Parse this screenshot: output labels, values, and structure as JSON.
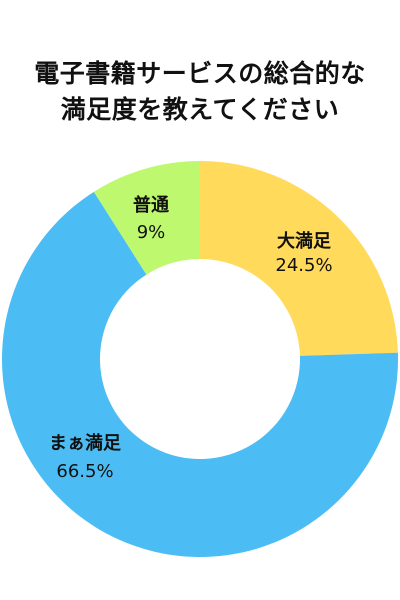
{
  "chart_data": {
    "type": "pie",
    "title": "電子書籍サービスの総合的な\n満足度を教えてください",
    "slices": [
      {
        "label": "大満足",
        "value": 24.5,
        "display_value": "24.5%",
        "color": "#FFDA5B"
      },
      {
        "label": "まぁ満足",
        "value": 66.5,
        "display_value": "66.5%",
        "color": "#4CBDF4"
      },
      {
        "label": "普通",
        "value": 9,
        "display_value": "9%",
        "color": "#BDF86F"
      }
    ],
    "donut": true,
    "legend": "none"
  }
}
